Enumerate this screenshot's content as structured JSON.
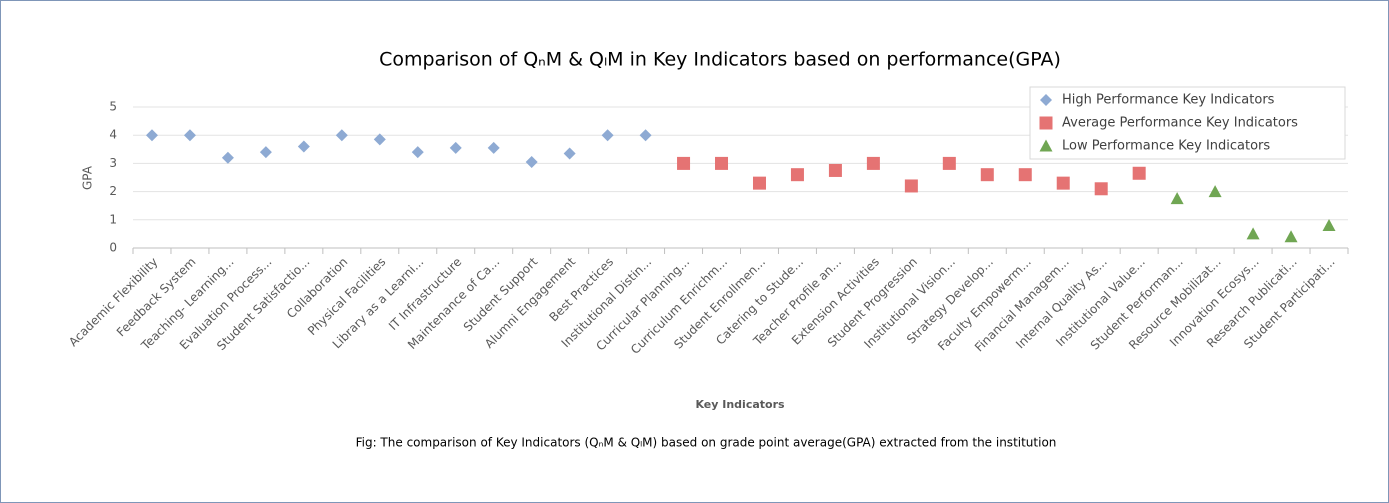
{
  "chart_data": {
    "type": "scatter",
    "title": "Comparison of QₙM & QₗM in Key Indicators based on performance(GPA)",
    "x_label": "Key Indicators",
    "y_label": "GPA",
    "caption": "Fig: The comparison of Key Indicators (QₙM & QₗM) based on grade point average(GPA) extracted from the institution",
    "categories": [
      "Academic Flexibility",
      "Feedback System",
      "Teaching- Learning...",
      "Evaluation Process...",
      "Student Satisfactio...",
      "Collaboration",
      "Physical Facilities",
      "Library as a Learni...",
      "IT Infrastructure",
      "Maintenance of Ca...",
      "Student Support",
      "Alumni Engagement",
      "Best Practices",
      "Institutional Distin...",
      "Curricular Planning...",
      "Curriculum Enrichm...",
      "Student Enrollmen...",
      "Catering to Stude...",
      "Teacher Profile an...",
      "Extension Activities",
      "Student Progression",
      "Institutional Vision...",
      "Strategy Develop...",
      "Faculty Empowerm...",
      "Financial Managem...",
      "Internal Quality As...",
      "Institutional Value...",
      "Student Performan...",
      "Resource Mobilizat...",
      "Innovation Ecosys...",
      "Research Publicati...",
      "Student Participati..."
    ],
    "series": [
      {
        "name": "High Performance Key Indicators",
        "color": "#8eaad3",
        "marker": "diamond",
        "values": [
          4.0,
          4.0,
          3.2,
          3.4,
          3.6,
          4.0,
          3.85,
          3.4,
          3.55,
          3.55,
          3.05,
          3.35,
          4.0,
          4.0,
          null,
          null,
          null,
          null,
          null,
          null,
          null,
          null,
          null,
          null,
          null,
          null,
          null,
          null,
          null,
          null,
          null,
          null
        ]
      },
      {
        "name": "Average Performance Key Indicators",
        "color": "#e57373",
        "marker": "square",
        "values": [
          null,
          null,
          null,
          null,
          null,
          null,
          null,
          null,
          null,
          null,
          null,
          null,
          null,
          null,
          3.0,
          3.0,
          2.3,
          2.6,
          2.75,
          3.0,
          2.2,
          3.0,
          2.6,
          2.6,
          2.3,
          2.1,
          2.65,
          null,
          null,
          null,
          null,
          null
        ]
      },
      {
        "name": "Low Performance Key Indicators",
        "color": "#70a653",
        "marker": "triangle",
        "values": [
          null,
          null,
          null,
          null,
          null,
          null,
          null,
          null,
          null,
          null,
          null,
          null,
          null,
          null,
          null,
          null,
          null,
          null,
          null,
          null,
          null,
          null,
          null,
          null,
          null,
          null,
          null,
          1.75,
          2.0,
          0.5,
          0.4,
          0.8
        ]
      }
    ],
    "ylim": [
      0,
      5
    ],
    "yticks": [
      0,
      1,
      2,
      3,
      4,
      5
    ],
    "grid": true,
    "legend": "top-right"
  }
}
